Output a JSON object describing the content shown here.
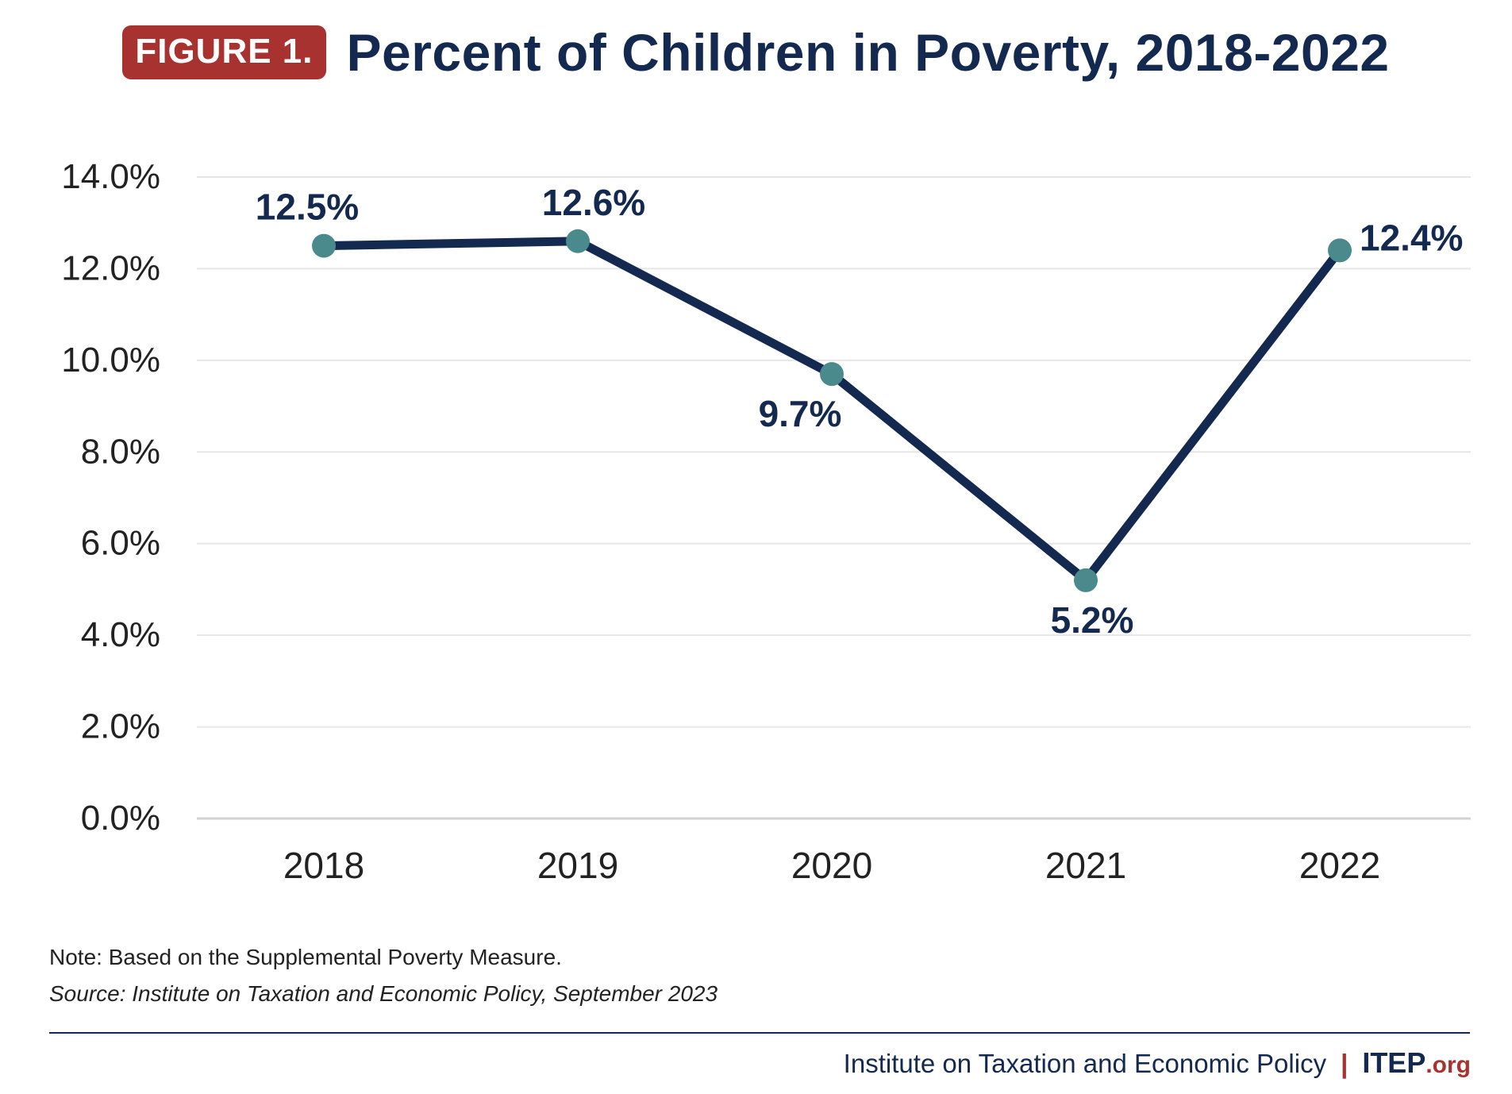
{
  "header": {
    "badge": "FIGURE 1.",
    "title": "Percent of Children in Poverty, 2018-2022"
  },
  "colors": {
    "line": "#14294f",
    "marker": "#4a8a8c",
    "grid": "#e6e6e6",
    "axis": "#d3d3d3",
    "badge": "#a8322f"
  },
  "chart_data": {
    "type": "line",
    "title": "Percent of Children in Poverty, 2018-2022",
    "categories": [
      "2018",
      "2019",
      "2020",
      "2021",
      "2022"
    ],
    "values": [
      12.5,
      12.6,
      9.7,
      5.2,
      12.4
    ],
    "data_labels": [
      "12.5%",
      "12.6%",
      "9.7%",
      "5.2%",
      "12.4%"
    ],
    "label_position": [
      "above",
      "above",
      "below",
      "below",
      "right"
    ],
    "y_ticks": [
      0,
      2,
      4,
      6,
      8,
      10,
      12,
      14
    ],
    "y_tick_labels": [
      "0.0%",
      "2.0%",
      "4.0%",
      "6.0%",
      "8.0%",
      "10.0%",
      "12.0%",
      "14.0%"
    ],
    "ylim": [
      0,
      14
    ],
    "xlabel": "",
    "ylabel": "",
    "grid": true,
    "legend": "none"
  },
  "footer": {
    "note": "Note: Based on the Supplemental Poverty Measure.",
    "source": "Source: Institute on Taxation and Economic Policy, September 2023",
    "org": "Institute on Taxation and Economic Policy",
    "separator": "|",
    "brand": "ITEP",
    "brand_suffix": ".org"
  }
}
